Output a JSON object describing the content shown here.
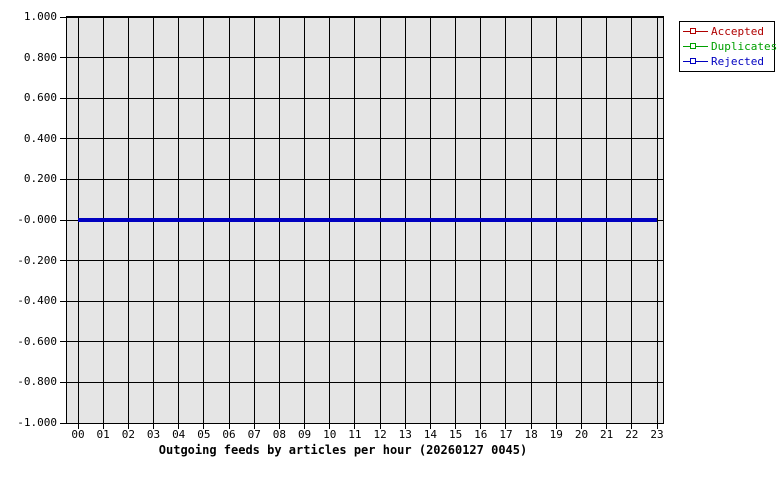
{
  "chart_data": {
    "type": "line",
    "title": "Outgoing feeds by articles per hour (20260127 0045)",
    "x": [
      "00",
      "01",
      "02",
      "03",
      "04",
      "05",
      "06",
      "07",
      "08",
      "09",
      "10",
      "11",
      "12",
      "13",
      "14",
      "15",
      "16",
      "17",
      "18",
      "19",
      "20",
      "21",
      "22",
      "23"
    ],
    "series": [
      {
        "name": "Accepted",
        "color": "#b00000",
        "line_width": 1,
        "values": [
          0,
          0,
          0,
          0,
          0,
          0,
          0,
          0,
          0,
          0,
          0,
          0,
          0,
          0,
          0,
          0,
          0,
          0,
          0,
          0,
          0,
          0,
          0,
          0
        ]
      },
      {
        "name": "Duplicates",
        "color": "#00a000",
        "line_width": 1,
        "values": [
          0,
          0,
          0,
          0,
          0,
          0,
          0,
          0,
          0,
          0,
          0,
          0,
          0,
          0,
          0,
          0,
          0,
          0,
          0,
          0,
          0,
          0,
          0,
          0
        ]
      },
      {
        "name": "Rejected",
        "color": "#0000c0",
        "line_width": 4,
        "values": [
          0,
          0,
          0,
          0,
          0,
          0,
          0,
          0,
          0,
          0,
          0,
          0,
          0,
          0,
          0,
          0,
          0,
          0,
          0,
          0,
          0,
          0,
          0,
          0
        ]
      }
    ],
    "ylim": [
      -1.0,
      1.0
    ],
    "y_tick_labels": [
      "1.000",
      "0.800",
      "0.600",
      "0.400",
      "0.200",
      "-0.000",
      "-0.200",
      "-0.400",
      "-0.600",
      "-0.800",
      "-1.000"
    ],
    "grid": true,
    "grid_color": "#000000",
    "plot_background": "#e5e5e5",
    "legend_position": "outside-top-right"
  }
}
